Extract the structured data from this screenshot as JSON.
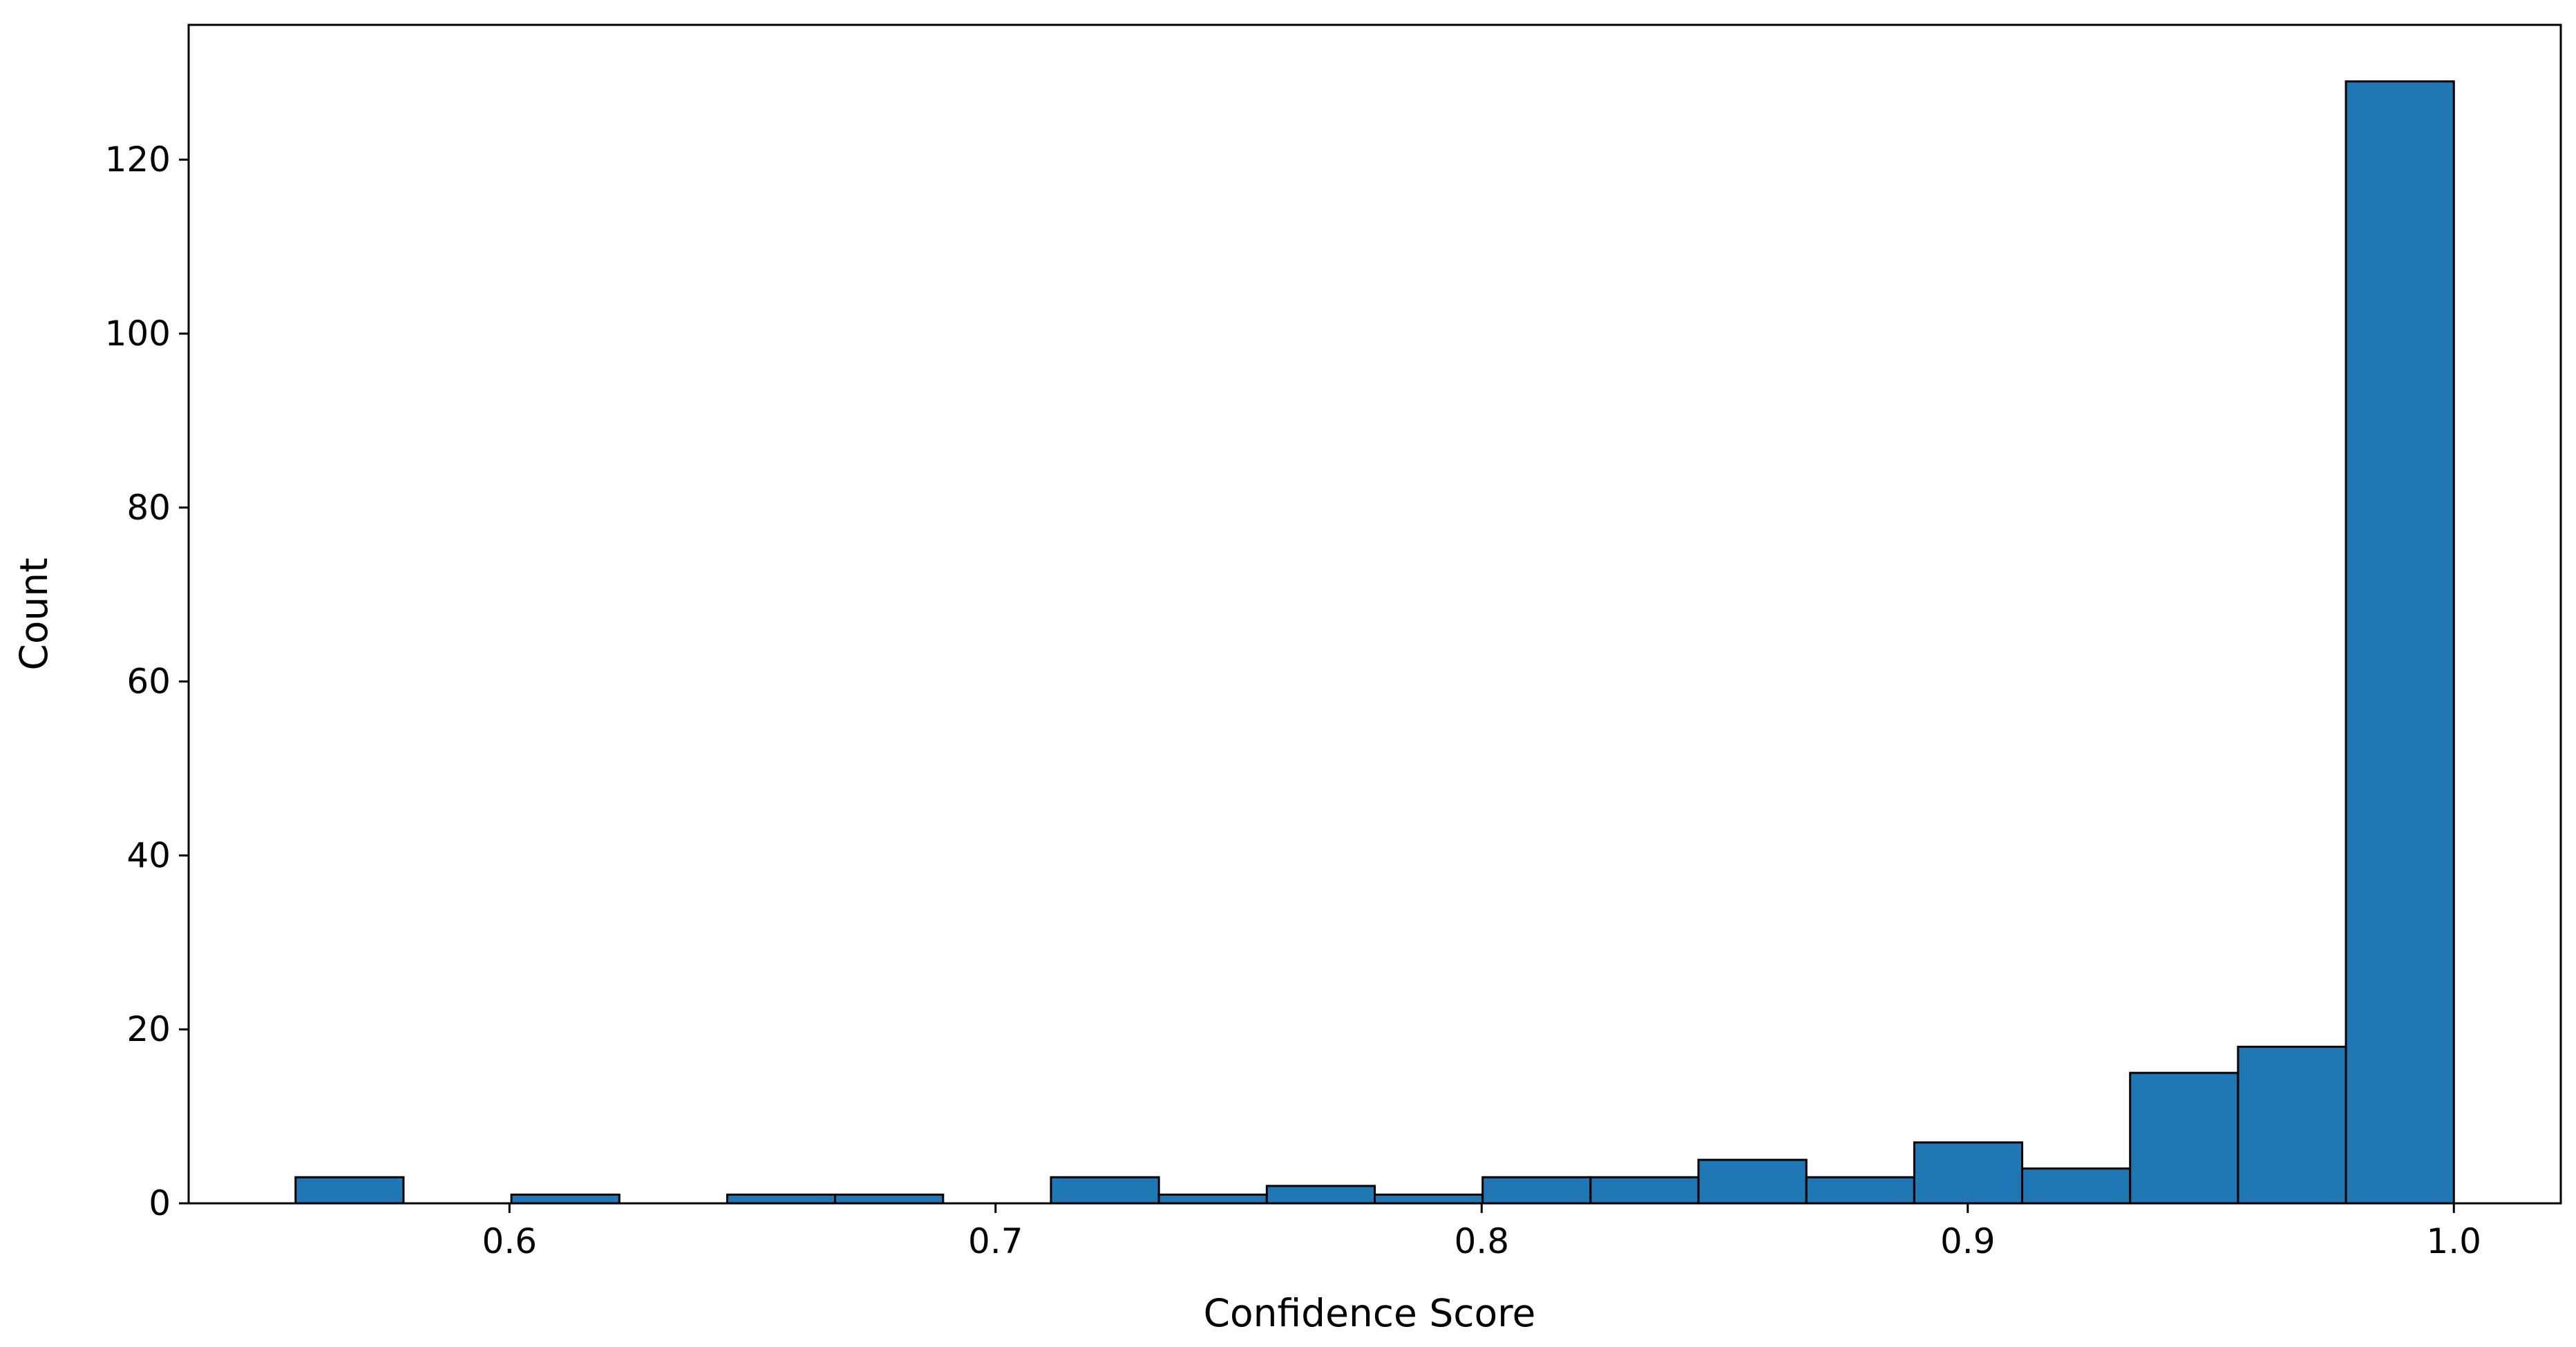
{
  "chart_data": {
    "type": "bar",
    "title": "",
    "xlabel": "Confidence Score",
    "ylabel": "Count",
    "xlim": [
      0.534,
      1.022
    ],
    "ylim": [
      0,
      135.5
    ],
    "grid": false,
    "legend": "none",
    "bar_color": "#1f77b4",
    "edge_color": "#000000",
    "x_ticks": [
      0.6,
      0.7,
      0.8,
      0.9,
      1.0
    ],
    "x_tick_labels": [
      "0.6",
      "0.7",
      "0.8",
      "0.9",
      "1.0"
    ],
    "y_ticks": [
      0,
      20,
      40,
      60,
      80,
      100,
      120
    ],
    "y_tick_labels": [
      "0",
      "20",
      "40",
      "60",
      "80",
      "100",
      "120"
    ],
    "bin_edges": [
      0.556,
      0.5782,
      0.6004,
      0.6226,
      0.6448,
      0.667,
      0.6892,
      0.7114,
      0.7336,
      0.7558,
      0.778,
      0.8002,
      0.8224,
      0.8446,
      0.8668,
      0.889,
      0.9112,
      0.9334,
      0.9556,
      0.9778,
      1.0
    ],
    "series": [
      {
        "values": [
          3,
          0,
          1,
          0,
          1,
          1,
          0,
          3,
          1,
          2,
          1,
          3,
          3,
          5,
          3,
          7,
          4,
          15,
          18,
          129
        ]
      }
    ]
  }
}
